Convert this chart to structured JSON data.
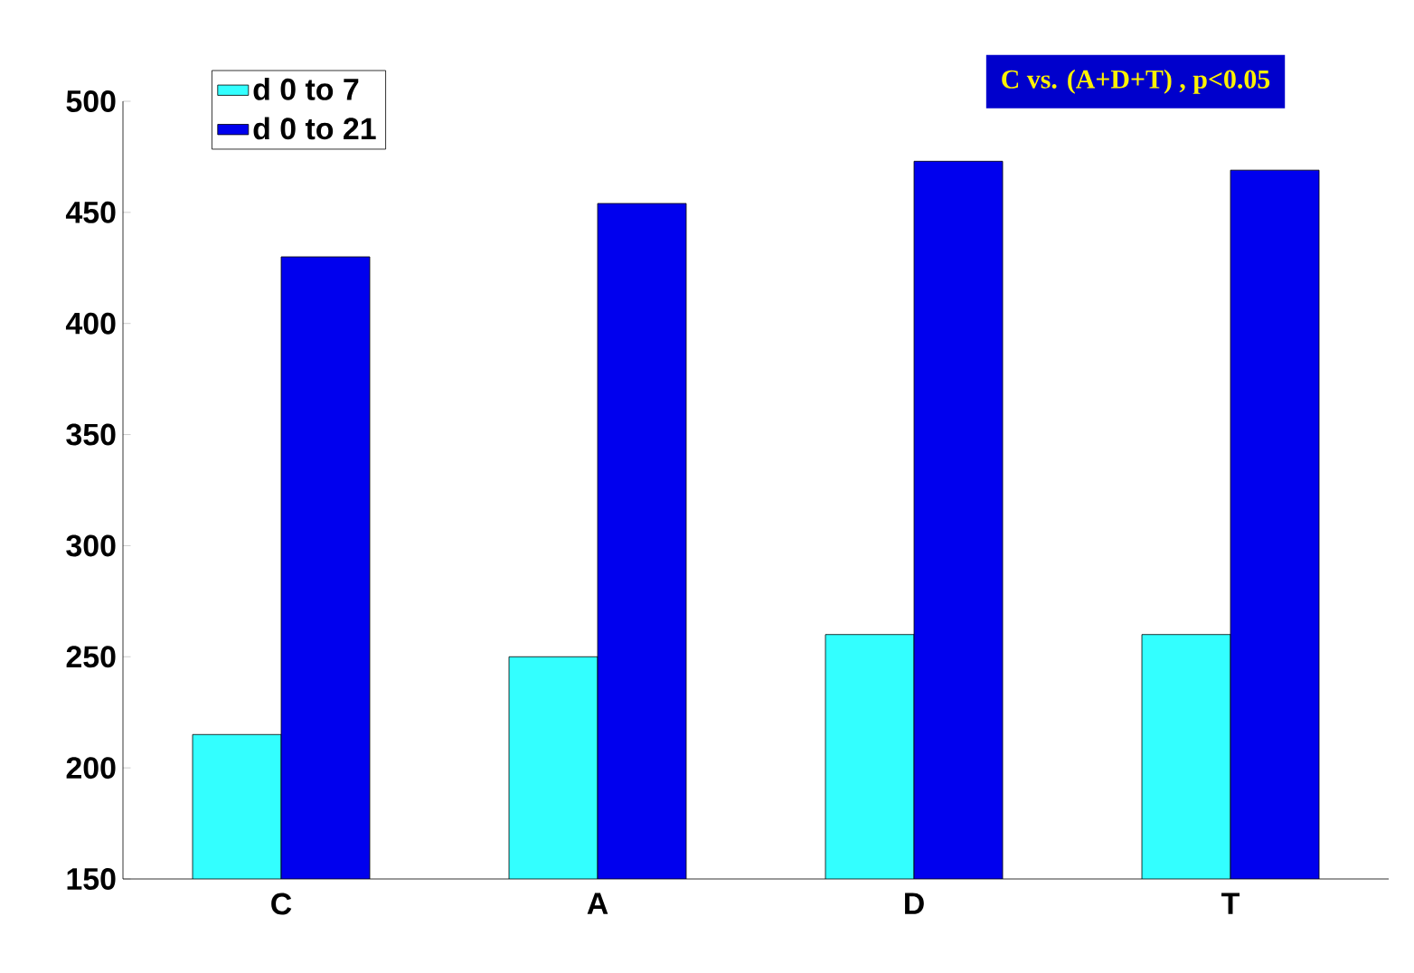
{
  "chart_data": {
    "type": "bar",
    "categories": [
      "C",
      "A",
      "D",
      "T"
    ],
    "series": [
      {
        "name": "d 0 to 7",
        "color": "#33ffff",
        "values": [
          215,
          250,
          260,
          260
        ]
      },
      {
        "name": "d 0 to 21",
        "color": "#0000ee",
        "values": [
          430,
          454,
          473,
          469
        ]
      }
    ],
    "ylim": [
      150,
      500
    ],
    "yticks": [
      150,
      200,
      250,
      300,
      350,
      400,
      450,
      500
    ],
    "grid": false,
    "legend": "top left",
    "annotations": [
      "C vs. (A+D+T) , p<0.05"
    ]
  }
}
